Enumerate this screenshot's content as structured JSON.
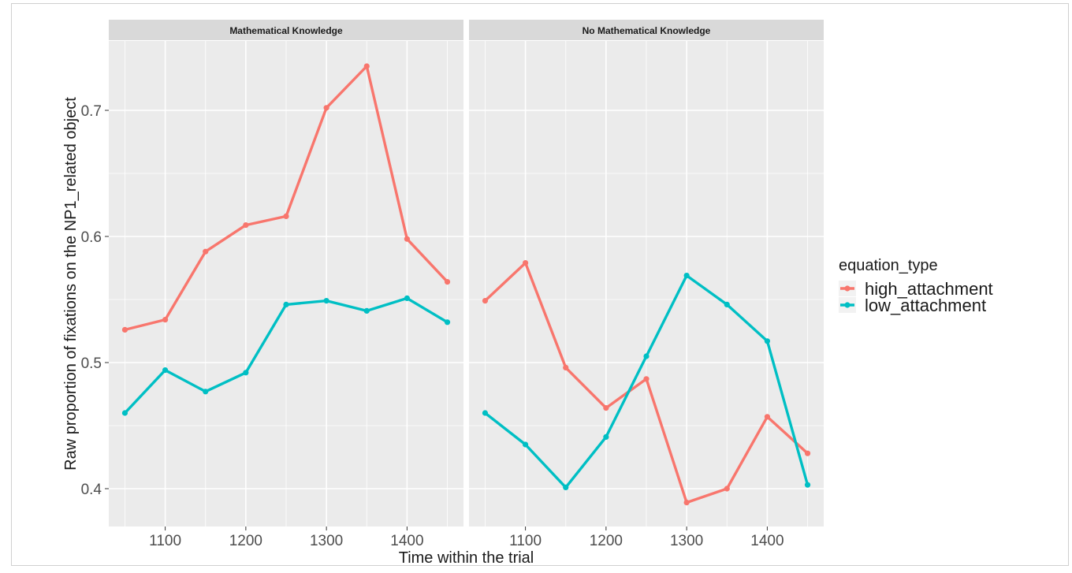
{
  "colors": {
    "panel_bg": "#EBEBEB",
    "grid": "#FFFFFF",
    "strip_bg": "#D9D9D9",
    "high_attachment": "#F8766D",
    "low_attachment": "#00BFC4",
    "text": "#1A1A1A",
    "tick_text": "#4D4D4D"
  },
  "chart_data": {
    "type": "line",
    "xlabel": "Time within the trial",
    "ylabel": "Raw proportion of fixations on the NP1_related object",
    "xlim": [
      1030,
      1470
    ],
    "ylim": [
      0.37,
      0.755
    ],
    "x_ticks": [
      1100,
      1200,
      1300,
      1400
    ],
    "x_tick_labels": [
      "1100",
      "1200",
      "1300",
      "1400"
    ],
    "y_ticks": [
      0.4,
      0.5,
      0.6,
      0.7
    ],
    "y_tick_labels": [
      "0.4",
      "0.5",
      "0.6",
      "0.7"
    ],
    "grid": true,
    "legend": {
      "title": "equation_type",
      "position": "right",
      "entries": [
        "high_attachment",
        "low_attachment"
      ]
    },
    "x": [
      1050,
      1100,
      1150,
      1200,
      1250,
      1300,
      1350,
      1400,
      1450
    ],
    "panels": [
      {
        "title": "Mathematical Knowledge",
        "series": [
          {
            "name": "high_attachment",
            "values": [
              0.526,
              0.534,
              0.588,
              0.609,
              0.616,
              0.702,
              0.735,
              0.598,
              0.564
            ]
          },
          {
            "name": "low_attachment",
            "values": [
              0.46,
              0.494,
              0.477,
              0.492,
              0.546,
              0.549,
              0.541,
              0.551,
              0.532
            ]
          }
        ]
      },
      {
        "title": "No Mathematical Knowledge",
        "series": [
          {
            "name": "high_attachment",
            "values": [
              0.549,
              0.579,
              0.496,
              0.464,
              0.487,
              0.389,
              0.4,
              0.457,
              0.428
            ]
          },
          {
            "name": "low_attachment",
            "values": [
              0.46,
              0.435,
              0.401,
              0.441,
              0.505,
              0.569,
              0.546,
              0.517,
              0.403
            ]
          }
        ]
      }
    ]
  }
}
